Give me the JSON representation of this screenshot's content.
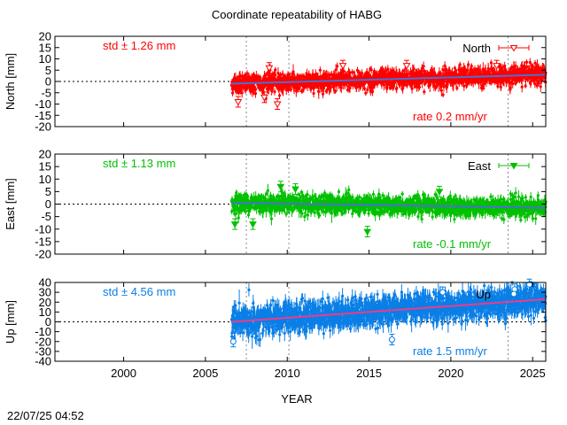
{
  "chart_data": {
    "type": "scatter",
    "title": "Coordinate repeatability of HABG",
    "xlabel": "YEAR",
    "footer": "22/07/25 04:52",
    "xlim": [
      1995.8,
      2025.8
    ],
    "xticks": [
      2000,
      2005,
      2010,
      2015,
      2020,
      2025
    ],
    "vlines": [
      2007.5,
      2010.1,
      2023.5
    ],
    "data_start": 2006.6,
    "panels": [
      {
        "id": "north",
        "ylabel": "North [mm]",
        "series_name": "North",
        "marker": "open-down-triangle",
        "color": "#ff0000",
        "trend_color": "#4a6fd6",
        "ylim": [
          -20,
          20
        ],
        "yticks": [
          20,
          15,
          10,
          5,
          0,
          -5,
          -10,
          -15,
          -20
        ],
        "std_label": "std ± 1.26 mm",
        "rate_label": "rate  0.2 mm/yr",
        "rate_mm_per_yr": 0.2,
        "std_mm": 1.26,
        "trend_start": -1.0,
        "trend_end": 3.0,
        "outliers": [
          [
            2007.0,
            -9
          ],
          [
            2008.6,
            -7
          ],
          [
            2009.4,
            -10
          ],
          [
            2008.9,
            6
          ],
          [
            2013.4,
            7
          ],
          [
            2017.3,
            7
          ],
          [
            2022.8,
            7
          ]
        ]
      },
      {
        "id": "east",
        "ylabel": "East [mm]",
        "series_name": "East",
        "marker": "filled-down-triangle",
        "color": "#00c000",
        "trend_color": "#4a6fd6",
        "ylim": [
          -20,
          20
        ],
        "yticks": [
          20,
          15,
          10,
          5,
          0,
          -5,
          -10,
          -15,
          -20
        ],
        "std_label": "std ± 1.13 mm",
        "rate_label": "rate -0.1 mm/yr",
        "rate_mm_per_yr": -0.1,
        "std_mm": 1.13,
        "trend_start": 0.5,
        "trend_end": -1.5,
        "outliers": [
          [
            2006.8,
            -8
          ],
          [
            2007.9,
            -8
          ],
          [
            2009.6,
            7
          ],
          [
            2010.5,
            6
          ],
          [
            2014.9,
            -11
          ],
          [
            2019.3,
            5
          ]
        ]
      },
      {
        "id": "up",
        "ylabel": "Up [mm]",
        "series_name": "Up",
        "marker": "open-circle",
        "color": "#0a7fe6",
        "trend_color": "#ee3b8a",
        "ylim": [
          -40,
          40
        ],
        "yticks": [
          40,
          30,
          20,
          10,
          0,
          -10,
          -20,
          -30,
          -40
        ],
        "std_label": "std ± 4.56 mm",
        "rate_label": "rate  1.5 mm/yr",
        "rate_mm_per_yr": 1.5,
        "std_mm": 4.56,
        "trend_start": 0,
        "trend_end": 23,
        "outliers": [
          [
            2006.7,
            -20
          ],
          [
            2016.4,
            -18
          ],
          [
            2024.8,
            38
          ],
          [
            2023.9,
            33
          ],
          [
            2019.5,
            30
          ]
        ]
      }
    ]
  }
}
